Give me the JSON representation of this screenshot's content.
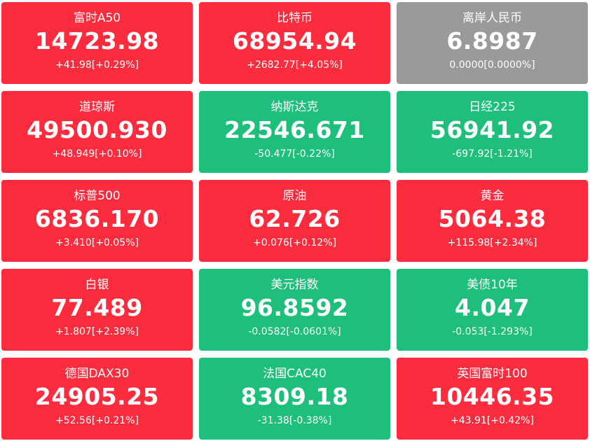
{
  "colors": {
    "up": "#fb2c3e",
    "down": "#1dbf7b",
    "flat": "#9a9a9a"
  },
  "tickers": [
    {
      "name": "富时A50",
      "price": "14723.98",
      "change": "+41.98[+0.29%]",
      "trend": "up"
    },
    {
      "name": "比特币",
      "price": "68954.94",
      "change": "+2682.77[+4.05%]",
      "trend": "up"
    },
    {
      "name": "离岸人民币",
      "price": "6.8987",
      "change": "0.0000[0.0000%]",
      "trend": "flat"
    },
    {
      "name": "道琼斯",
      "price": "49500.930",
      "change": "+48.949[+0.10%]",
      "trend": "up"
    },
    {
      "name": "纳斯达克",
      "price": "22546.671",
      "change": "-50.477[-0.22%]",
      "trend": "down"
    },
    {
      "name": "日经225",
      "price": "56941.92",
      "change": "-697.92[-1.21%]",
      "trend": "down"
    },
    {
      "name": "标普500",
      "price": "6836.170",
      "change": "+3.410[+0.05%]",
      "trend": "up"
    },
    {
      "name": "原油",
      "price": "62.726",
      "change": "+0.076[+0.12%]",
      "trend": "up"
    },
    {
      "name": "黄金",
      "price": "5064.38",
      "change": "+115.98[+2.34%]",
      "trend": "up"
    },
    {
      "name": "白银",
      "price": "77.489",
      "change": "+1.807[+2.39%]",
      "trend": "up"
    },
    {
      "name": "美元指数",
      "price": "96.8592",
      "change": "-0.0582[-0.0601%]",
      "trend": "down"
    },
    {
      "name": "美债10年",
      "price": "4.047",
      "change": "-0.053[-1.293%]",
      "trend": "down"
    },
    {
      "name": "德国DAX30",
      "price": "24905.25",
      "change": "+52.56[+0.21%]",
      "trend": "up"
    },
    {
      "name": "法国CAC40",
      "price": "8309.18",
      "change": "-31.38[-0.38%]",
      "trend": "down"
    },
    {
      "name": "英国富时100",
      "price": "10446.35",
      "change": "+43.91[+0.42%]",
      "trend": "up"
    }
  ]
}
